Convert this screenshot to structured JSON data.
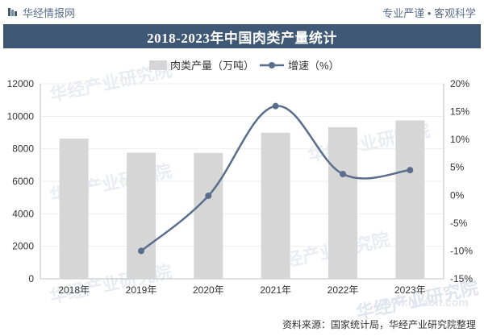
{
  "header": {
    "brand": "华经情报网",
    "tagline": "专业严谨 • 客观科学"
  },
  "title": "2018-2023年中国肉类产量统计",
  "footer": {
    "source": "资料来源：国家统计局，华经产业研究院整理"
  },
  "watermarks": [
    "华经产业研究院",
    "华经产业研究院",
    "华经产业研究院",
    "华经产业研究院",
    "华经产业研究院",
    "华经产业研究院"
  ],
  "watermark_url": "www.huaon.com",
  "chart_data": {
    "type": "bar",
    "categories": [
      "2018年",
      "2019年",
      "2020年",
      "2021年",
      "2022年",
      "2023年"
    ],
    "series": [
      {
        "name": "肉类产量（万吨）",
        "type": "bar",
        "axis": "left",
        "values": [
          8625,
          7759,
          7748,
          8990,
          9328,
          9748
        ]
      },
      {
        "name": "增速（%）",
        "type": "line",
        "axis": "right",
        "values": [
          null,
          -10.0,
          -0.1,
          16.0,
          3.8,
          4.5
        ]
      }
    ],
    "ylim_left": [
      0,
      12000
    ],
    "yticks_left": [
      "0",
      "2000",
      "4000",
      "6000",
      "8000",
      "10000",
      "12000"
    ],
    "ylim_right": [
      -15,
      20
    ],
    "yticks_right": [
      "-15%",
      "-10%",
      "-5%",
      "0%",
      "5%",
      "10%",
      "15%",
      "20%"
    ],
    "grid": true,
    "legend_position": "top",
    "colors": {
      "bar": "#d6d6d6",
      "line": "#5a6e8c",
      "axis": "#bfbfbf"
    }
  }
}
